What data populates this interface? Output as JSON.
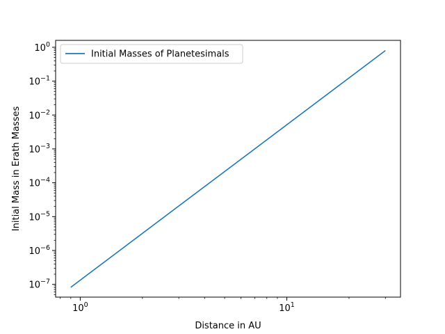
{
  "chart_data": {
    "type": "line",
    "xscale": "log",
    "yscale": "log",
    "xlabel": "Distance in AU",
    "ylabel": "Initial Mass in Erath Masses",
    "xlim": [
      0.76,
      35.5
    ],
    "ylim": [
      4.2e-08,
      1.6
    ],
    "x_major_ticks": [
      {
        "value": 1,
        "mantissa": "10",
        "exp": "0"
      },
      {
        "value": 10,
        "mantissa": "10",
        "exp": "1"
      }
    ],
    "y_major_ticks": [
      {
        "value": 1e-07,
        "mantissa": "10",
        "exp": "−7"
      },
      {
        "value": 1e-06,
        "mantissa": "10",
        "exp": "−6"
      },
      {
        "value": 1e-05,
        "mantissa": "10",
        "exp": "−5"
      },
      {
        "value": 0.0001,
        "mantissa": "10",
        "exp": "−4"
      },
      {
        "value": 0.001,
        "mantissa": "10",
        "exp": "−3"
      },
      {
        "value": 0.01,
        "mantissa": "10",
        "exp": "−2"
      },
      {
        "value": 0.1,
        "mantissa": "10",
        "exp": "−1"
      },
      {
        "value": 1,
        "mantissa": "10",
        "exp": "0"
      }
    ],
    "grid": false,
    "legend_position": "top-left",
    "series": [
      {
        "name": "Initial Masses of Planetesimals",
        "color": "#1f77b4",
        "x": [
          0.9,
          30
        ],
        "y": [
          8.2e-08,
          0.8
        ]
      }
    ]
  }
}
